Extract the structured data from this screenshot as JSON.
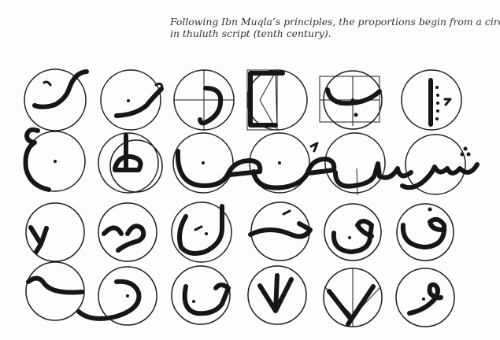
{
  "caption": {
    "line1": "Following Ibn Muqla’s principles, the proportions begin from a circle",
    "line2": "in thuluth script (tenth century)."
  },
  "plate": {
    "rows": 4,
    "letters_per_row": 6
  }
}
